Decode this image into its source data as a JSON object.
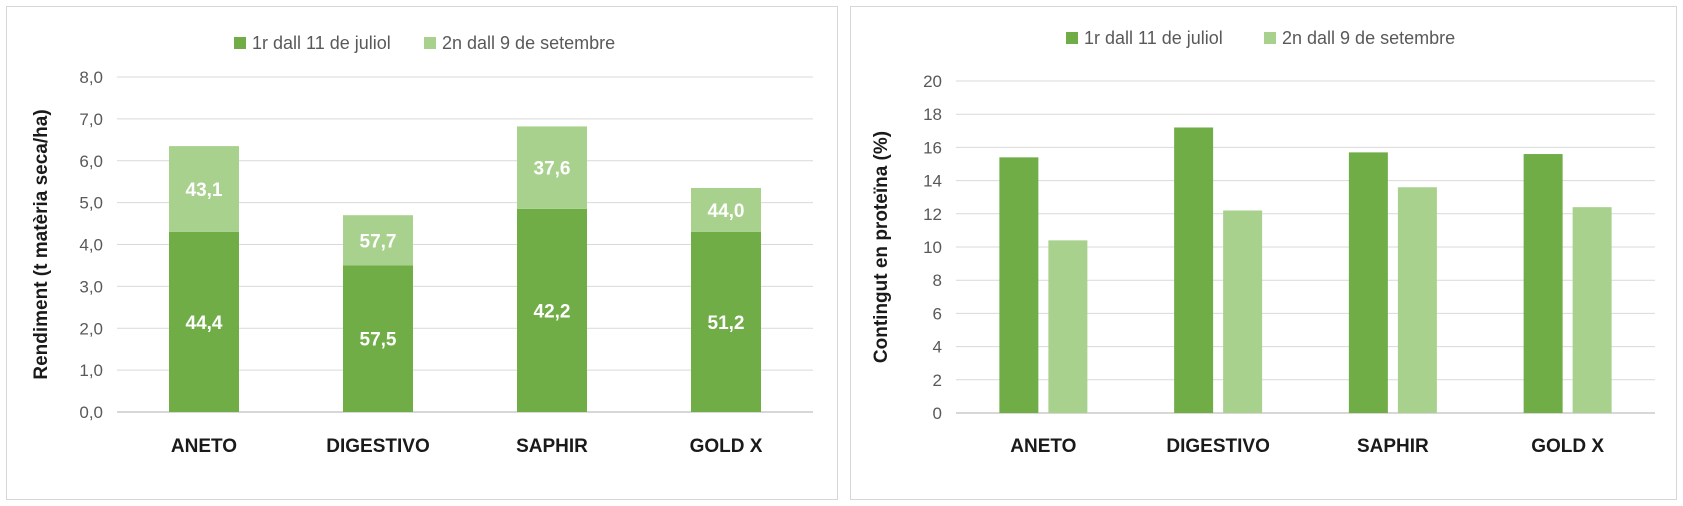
{
  "colors": {
    "series1": "#70ad47",
    "series2": "#a9d18e",
    "grid": "#d9d9d9",
    "label": "#ffffff"
  },
  "chart_data": [
    {
      "type": "bar",
      "stacked": true,
      "title": "",
      "xlabel": "",
      "ylabel": "Rendiment (t matèria seca/ha)",
      "categories": [
        "ANETO",
        "DIGESTIVO",
        "SAPHIR",
        "GOLD X"
      ],
      "series": [
        {
          "name": "1r dall 11 de juliol",
          "values": [
            4.3,
            3.5,
            4.85,
            4.3
          ],
          "labels": [
            "44,4",
            "57,5",
            "42,2",
            "51,2"
          ]
        },
        {
          "name": "2n dall 9 de setembre",
          "values": [
            2.05,
            1.2,
            1.97,
            1.05
          ],
          "labels": [
            "43,1",
            "57,7",
            "37,6",
            "44,0"
          ]
        }
      ],
      "ylim": [
        0,
        8
      ],
      "yticks": [
        "0,0",
        "1,0",
        "2,0",
        "3,0",
        "4,0",
        "5,0",
        "6,0",
        "7,0",
        "8,0"
      ],
      "grid": true,
      "legend": "top-center"
    },
    {
      "type": "bar",
      "stacked": false,
      "title": "",
      "xlabel": "",
      "ylabel": "Contingut en proteïna (%)",
      "categories": [
        "ANETO",
        "DIGESTIVO",
        "SAPHIR",
        "GOLD X"
      ],
      "series": [
        {
          "name": "1r dall 11 de juliol",
          "values": [
            15.4,
            17.2,
            15.7,
            15.6
          ]
        },
        {
          "name": "2n dall 9 de setembre",
          "values": [
            10.4,
            12.2,
            13.6,
            12.4
          ]
        }
      ],
      "ylim": [
        0,
        20
      ],
      "yticks": [
        "0",
        "2",
        "4",
        "6",
        "8",
        "10",
        "12",
        "14",
        "16",
        "18",
        "20"
      ],
      "grid": true,
      "legend": "top-center"
    }
  ]
}
